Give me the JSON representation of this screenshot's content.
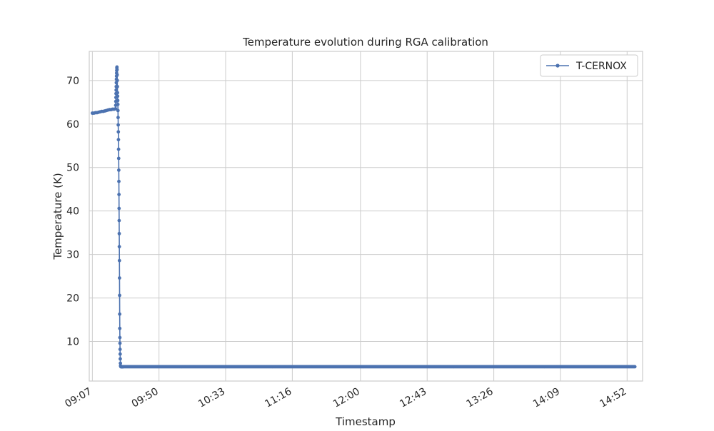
{
  "chart_data": {
    "type": "line",
    "title": "Temperature evolution during RGA calibration",
    "xlabel": "Timestamp",
    "ylabel": "Temperature (K)",
    "x_unit": "time (HH:MM)",
    "xlim": [
      "09:05",
      "15:02"
    ],
    "ylim": [
      0.9,
      76.7
    ],
    "x_ticks": [
      "09:07",
      "09:50",
      "10:33",
      "11:16",
      "12:00",
      "12:43",
      "13:26",
      "14:09",
      "14:52"
    ],
    "y_ticks": [
      10,
      20,
      30,
      40,
      50,
      60,
      70
    ],
    "grid": true,
    "legend": "top-right",
    "series": [
      {
        "name": "T-CERNOX",
        "color": "#4c72b0",
        "marker": "circle",
        "segments": [
          {
            "x": [
              "09:07",
              "09:08",
              "09:09",
              "09:10",
              "09:11",
              "09:12",
              "09:13",
              "09:14",
              "09:15",
              "09:16",
              "09:17",
              "09:18",
              "09:19",
              "09:20",
              "09:21",
              "09:22",
              "09:22",
              "09:22",
              "09:22",
              "09:22",
              "09:22",
              "09:22",
              "09:22",
              "09:22",
              "09:22",
              "09:22",
              "09:22",
              "09:22",
              "09:22",
              "09:22",
              "09:23",
              "09:23",
              "09:23",
              "09:23",
              "09:23",
              "09:23",
              "09:23",
              "09:23",
              "09:23",
              "09:23",
              "09:23",
              "09:23",
              "09:23",
              "09:24",
              "09:24",
              "09:24",
              "09:24",
              "09:24",
              "09:24",
              "09:24",
              "09:24",
              "09:24",
              "09:24",
              "09:24",
              "09:24",
              "09:24",
              "09:24",
              "09:24",
              "09:24",
              "09:24",
              "09:25",
              "09:25",
              "09:25",
              "09:25",
              "09:25",
              "09:25",
              "09:25",
              "09:25",
              "09:25",
              "09:25",
              "09:26",
              "09:26",
              "09:26",
              "09:26",
              "09:26"
            ],
            "y": [
              62.5,
              62.5,
              62.6,
              62.6,
              62.7,
              62.8,
              62.9,
              62.9,
              63.0,
              63.1,
              63.2,
              63.3,
              63.3,
              63.4,
              63.4,
              63.5,
              64.3,
              65.2,
              66.1,
              67.0,
              67.8,
              68.6,
              69.5,
              70.3,
              71.0,
              71.7,
              72.3,
              72.9,
              73.1,
              72.5,
              71.3,
              70.0,
              68.6,
              67.2,
              66.4,
              65.4,
              64.5,
              63.1,
              61.5,
              59.8,
              58.2,
              56.4,
              54.2,
              52.1,
              49.4,
              46.8,
              43.8,
              40.6,
              37.8,
              34.8,
              31.8,
              28.6,
              24.6,
              20.6,
              16.3,
              13.0,
              10.9,
              9.6,
              8.2,
              7.1,
              6.0,
              5.0,
              4.4,
              4.3,
              4.2,
              4.2,
              4.2,
              4.2,
              4.2,
              4.2,
              4.2,
              4.2,
              4.2,
              4.2,
              4.2
            ]
          },
          {
            "x_range": [
              "09:26",
              "14:57"
            ],
            "interval_minutes": 0.5,
            "y_constant": 4.2
          }
        ]
      }
    ]
  }
}
